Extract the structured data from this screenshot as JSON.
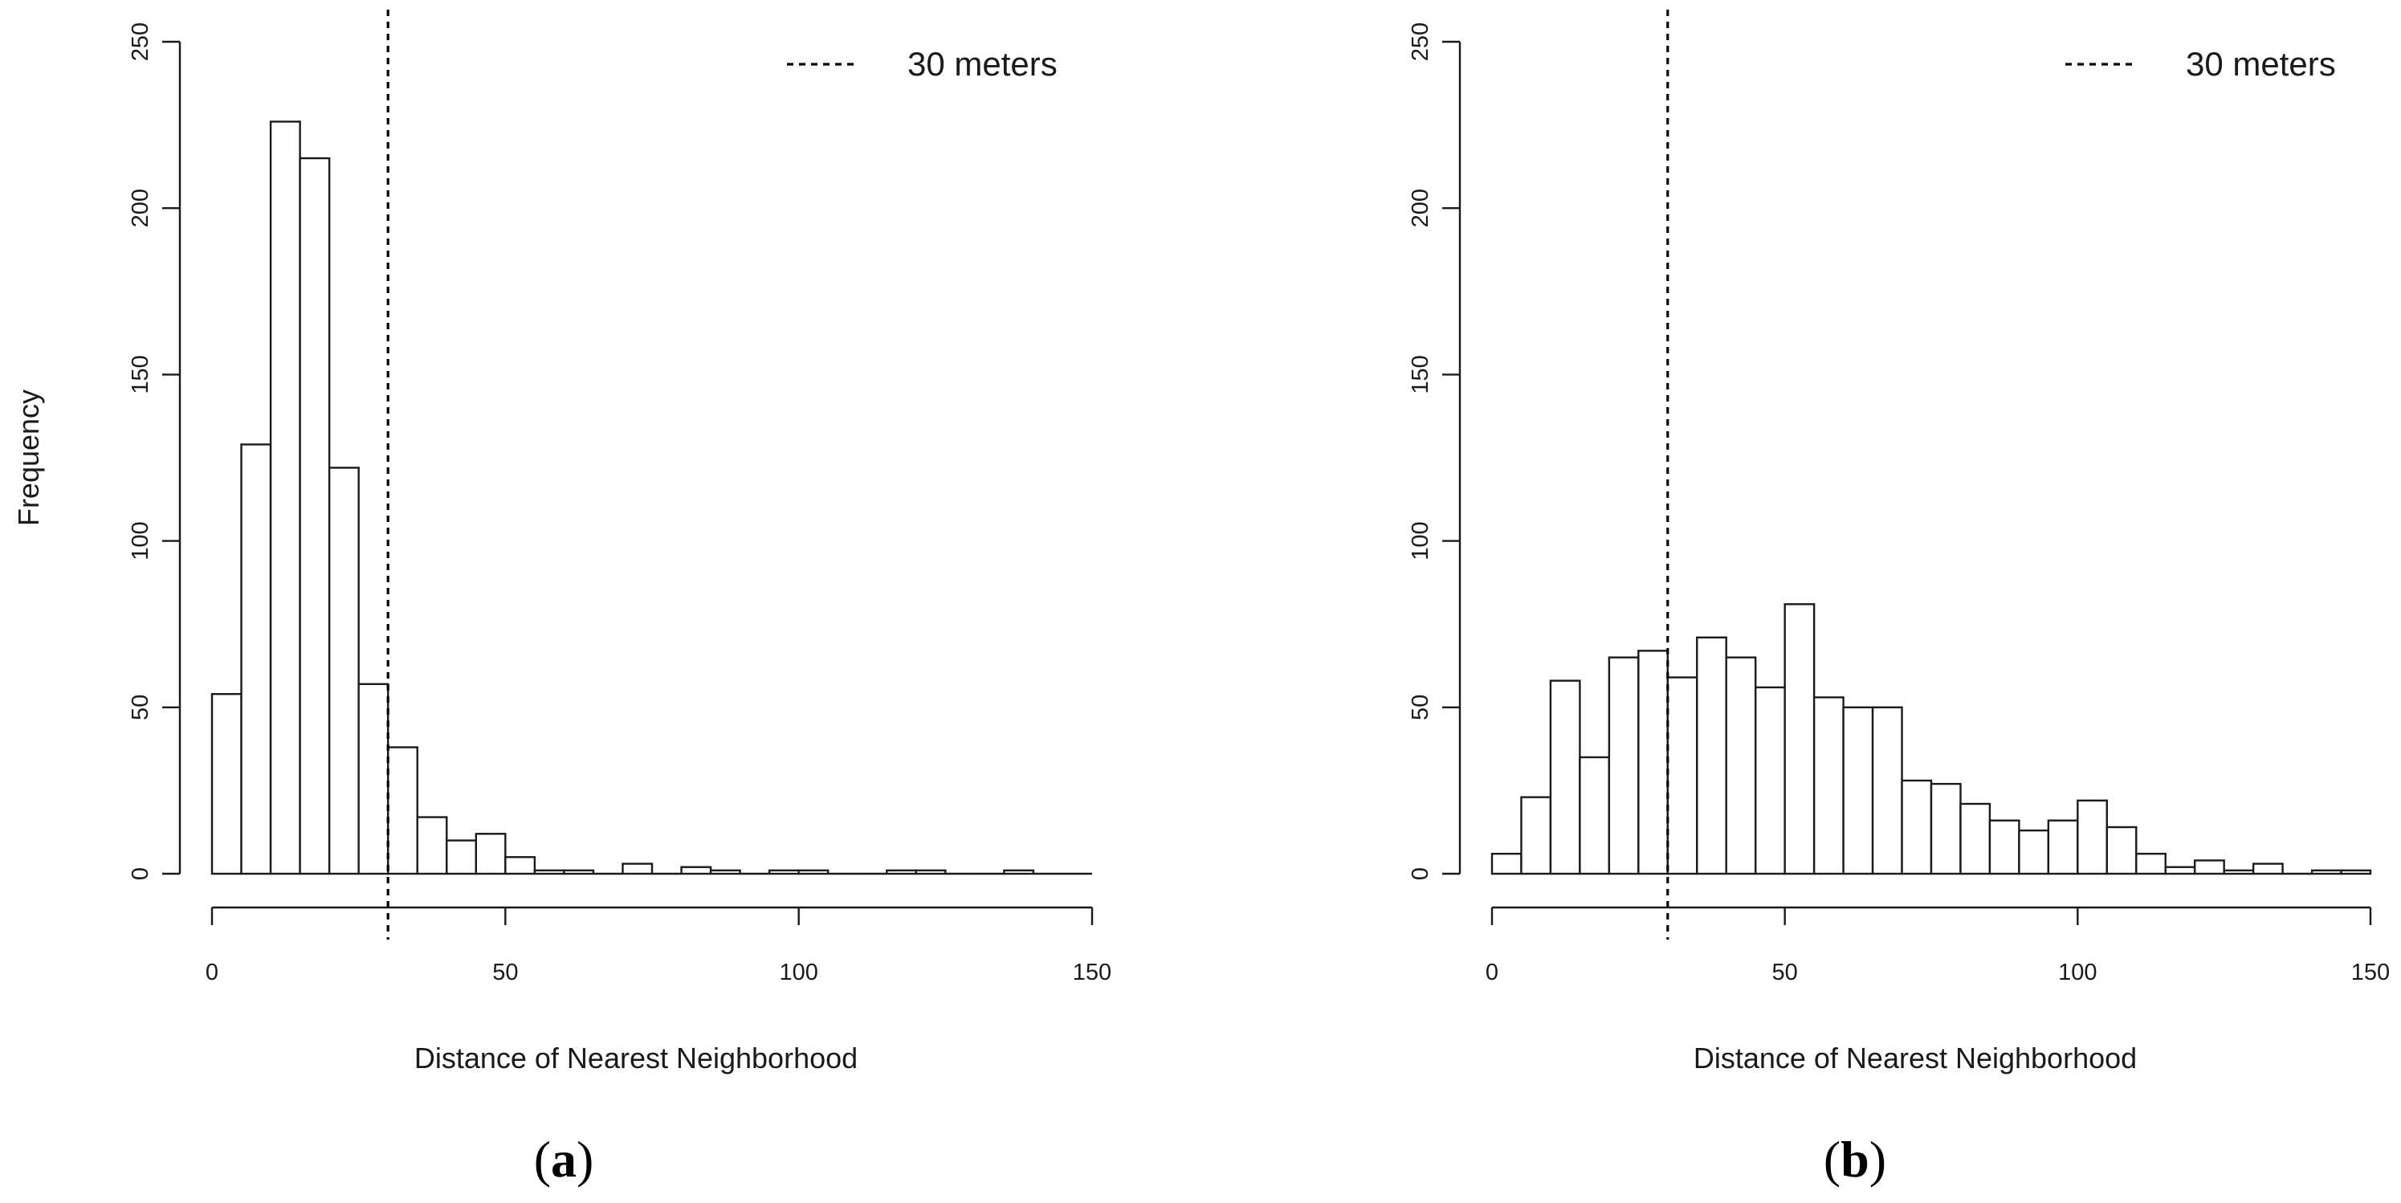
{
  "colors": {
    "bar_fill": "#ffffff",
    "bar_stroke": "#1a1a1a",
    "axis": "#1a1a1a",
    "reference_line": "#000000"
  },
  "chart_data": [
    {
      "type": "bar",
      "panel_label": "a",
      "xlabel": "Distance of Nearest Neighborhood",
      "ylabel": "Frequency",
      "xlim": [
        0,
        150
      ],
      "ylim": [
        0,
        250
      ],
      "x_ticks": [
        0,
        50,
        100,
        150
      ],
      "y_ticks": [
        0,
        50,
        100,
        150,
        200,
        250
      ],
      "bin_width": 5,
      "bin_start": 0,
      "values": [
        54,
        129,
        226,
        215,
        122,
        57,
        38,
        17,
        10,
        12,
        5,
        1,
        1,
        0,
        3,
        0,
        2,
        1,
        0,
        1,
        1,
        0,
        0,
        1,
        1,
        0,
        0,
        1,
        0,
        0
      ],
      "reference_line": {
        "x": 30,
        "style": "dashed",
        "label": "30 meters"
      },
      "legend_position": "top-right",
      "grid": false
    },
    {
      "type": "bar",
      "panel_label": "b",
      "xlabel": "Distance of Nearest Neighborhood",
      "ylabel": "",
      "xlim": [
        0,
        150
      ],
      "ylim": [
        0,
        250
      ],
      "x_ticks": [
        0,
        50,
        100,
        150
      ],
      "y_ticks": [
        0,
        50,
        100,
        150,
        200,
        250
      ],
      "bin_width": 5,
      "bin_start": 0,
      "values": [
        6,
        23,
        58,
        35,
        65,
        67,
        59,
        71,
        65,
        56,
        81,
        53,
        50,
        50,
        28,
        27,
        21,
        16,
        13,
        16,
        22,
        14,
        6,
        2,
        4,
        1,
        3,
        0,
        1,
        1
      ],
      "reference_line": {
        "x": 30,
        "style": "dashed",
        "label": "30 meters"
      },
      "legend_position": "top-right",
      "grid": false
    }
  ]
}
